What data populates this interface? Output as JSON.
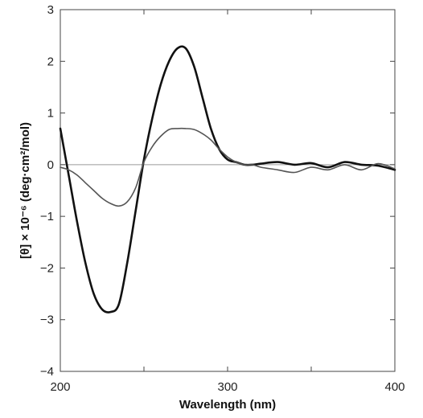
{
  "chart_data": {
    "type": "line",
    "title": "",
    "xlabel": "Wavelength (nm)",
    "ylabel": "[θ] × 10⁻⁶ (deg·cm²/mol)",
    "xlim": [
      200,
      400
    ],
    "ylim": [
      -4,
      3
    ],
    "xticks": [
      200,
      300,
      400
    ],
    "yticks": [
      -4,
      -3,
      -2,
      -1,
      0,
      1,
      2,
      3
    ],
    "zero_line": true,
    "grid": false,
    "legend": "none",
    "series": [
      {
        "color": "#111111",
        "x": [
          200,
          205,
          210,
          215,
          220,
          225,
          230,
          235,
          240,
          245,
          250,
          255,
          260,
          265,
          270,
          275,
          280,
          285,
          290,
          295,
          300,
          305,
          310,
          315,
          320,
          330,
          340,
          350,
          360,
          370,
          380,
          390,
          400
        ],
        "values": [
          0.7,
          -0.2,
          -1.1,
          -1.9,
          -2.5,
          -2.8,
          -2.85,
          -2.7,
          -1.9,
          -0.9,
          0.1,
          0.9,
          1.55,
          2.0,
          2.25,
          2.25,
          1.9,
          1.3,
          0.7,
          0.3,
          0.1,
          0.05,
          0.0,
          0.0,
          0.02,
          0.05,
          0.0,
          0.03,
          -0.05,
          0.05,
          0.0,
          -0.02,
          -0.1
        ]
      },
      {
        "color": "#555555",
        "x": [
          200,
          205,
          210,
          215,
          220,
          225,
          230,
          235,
          240,
          245,
          250,
          255,
          260,
          265,
          270,
          275,
          280,
          285,
          290,
          295,
          300,
          305,
          310,
          315,
          320,
          330,
          340,
          350,
          360,
          370,
          380,
          390,
          400
        ],
        "values": [
          -0.05,
          -0.1,
          -0.2,
          -0.35,
          -0.5,
          -0.65,
          -0.75,
          -0.8,
          -0.72,
          -0.45,
          0.05,
          0.35,
          0.55,
          0.68,
          0.7,
          0.7,
          0.68,
          0.6,
          0.48,
          0.3,
          0.15,
          0.05,
          0.0,
          0.0,
          -0.05,
          -0.1,
          -0.15,
          -0.05,
          -0.1,
          0.0,
          -0.1,
          0.02,
          -0.08
        ]
      }
    ]
  }
}
